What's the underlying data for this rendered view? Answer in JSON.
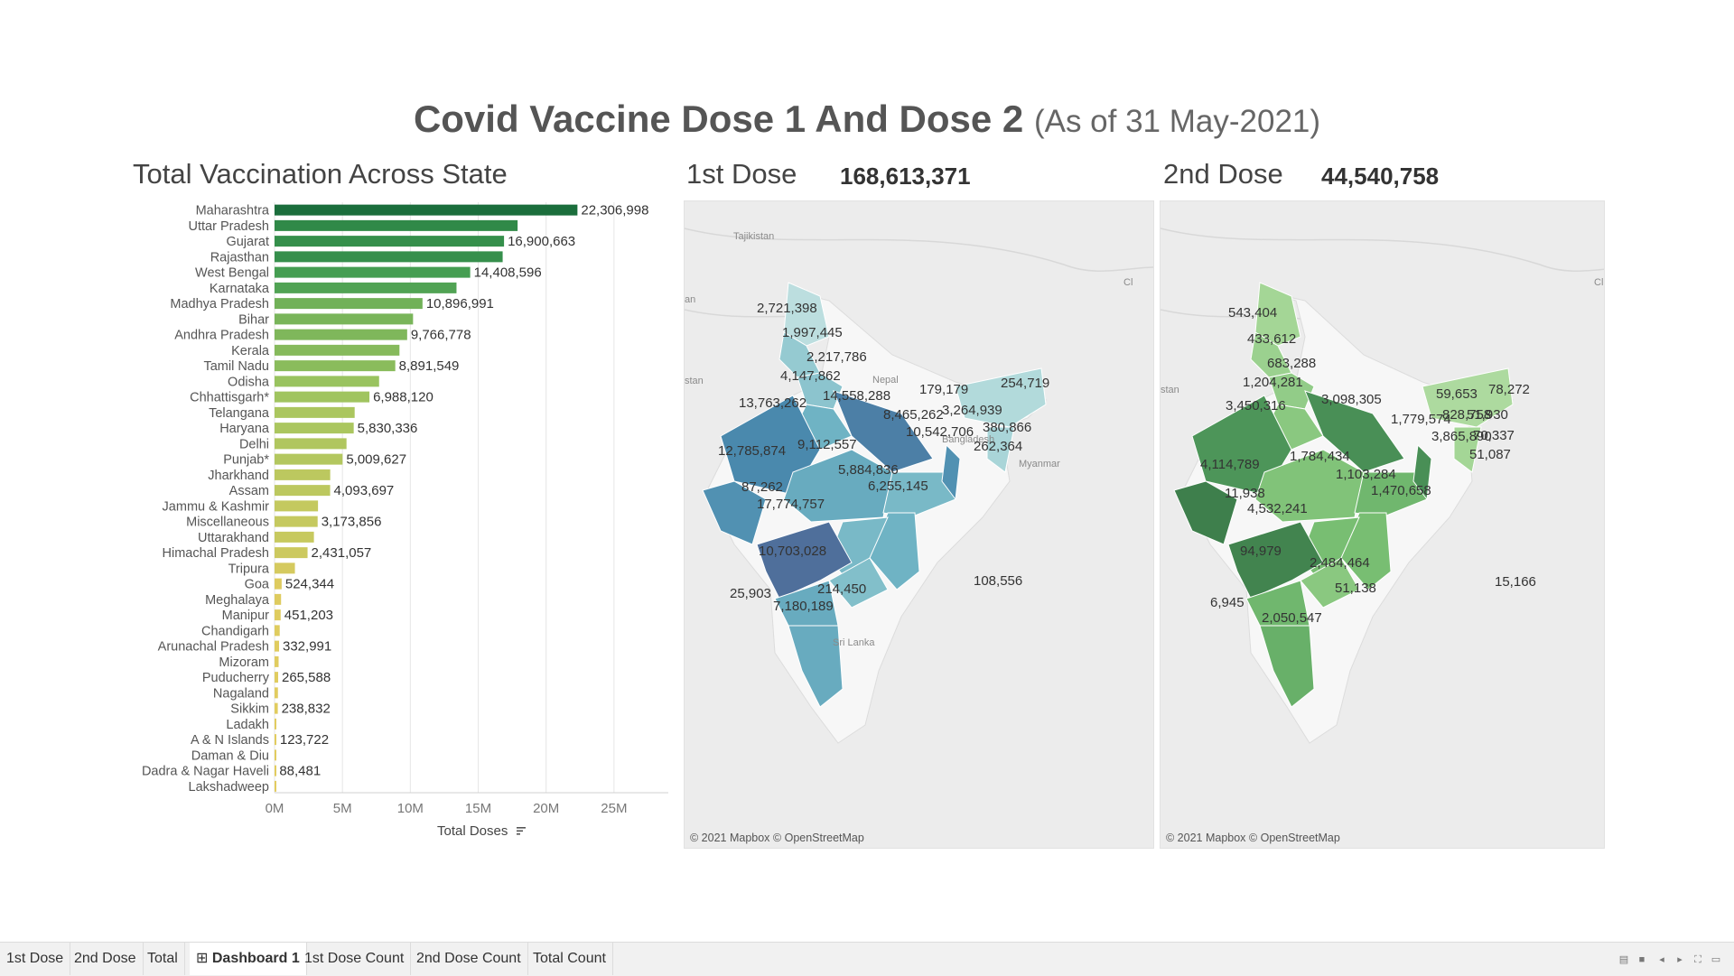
{
  "dashboard": {
    "title_main": "Covid Vaccine Dose 1 And Dose 2",
    "title_sub": "(As of 31 May-2021)"
  },
  "bar_panel": {
    "title": "Total Vaccination Across State",
    "axis_title": "Total Doses",
    "sort_icon": "sort-descending-icon"
  },
  "dose1": {
    "label": "1st Dose",
    "total": "168,613,371",
    "credit": "© 2021 Mapbox © OpenStreetMap"
  },
  "dose2": {
    "label": "2nd Dose",
    "total": "44,540,758",
    "credit": "© 2021 Mapbox © OpenStreetMap"
  },
  "chart_data": {
    "type": "bar",
    "orientation": "horizontal",
    "title": "Total Vaccination Across State",
    "xlabel": "Total Doses",
    "xlim": [
      0,
      29000000
    ],
    "xticks": [
      0,
      5000000,
      10000000,
      15000000,
      20000000,
      25000000
    ],
    "xtick_labels": [
      "0M",
      "5M",
      "10M",
      "15M",
      "20M",
      "25M"
    ],
    "grid": true,
    "color_scale": [
      "#1b6e3c",
      "#3f9b51",
      "#9cc45f",
      "#e3cc5f"
    ],
    "categories": [
      "Maharashtra",
      "Uttar Pradesh",
      "Gujarat",
      "Rajasthan",
      "West Bengal",
      "Karnataka",
      "Madhya Pradesh",
      "Bihar",
      "Andhra Pradesh",
      "Kerala",
      "Tamil Nadu",
      "Odisha",
      "Chhattisgarh*",
      "Telangana",
      "Haryana",
      "Delhi",
      "Punjab*",
      "Jharkhand",
      "Assam",
      "Jammu & Kashmir",
      "Miscellaneous",
      "Uttarakhand",
      "Himachal Pradesh",
      "Tripura",
      "Goa",
      "Meghalaya",
      "Manipur",
      "Chandigarh",
      "Arunachal Pradesh",
      "Mizoram",
      "Puducherry",
      "Nagaland",
      "Sikkim",
      "Ladakh",
      "A & N Islands",
      "Daman & Diu",
      "Dadra & Nagar Haveli",
      "Lakshadweep"
    ],
    "values": [
      22306998,
      17900000,
      16900663,
      16800000,
      14408596,
      13400000,
      10896991,
      10200000,
      9766778,
      9200000,
      8891549,
      7700000,
      6988120,
      5900000,
      5830336,
      5300000,
      5009627,
      4100000,
      4093697,
      3200000,
      3173856,
      2900000,
      2431057,
      1500000,
      524344,
      480000,
      451203,
      380000,
      332991,
      300000,
      265588,
      250000,
      238832,
      130000,
      123722,
      100000,
      88481,
      30000
    ],
    "data_labels": [
      "22,306,998",
      "",
      "16,900,663",
      "",
      "14,408,596",
      "",
      "10,896,991",
      "",
      "9,766,778",
      "",
      "8,891,549",
      "",
      "6,988,120",
      "",
      "5,830,336",
      "",
      "5,009,627",
      "",
      "4,093,697",
      "",
      "3,173,856",
      "",
      "2,431,057",
      "",
      "524,344",
      "",
      "451,203",
      "",
      "332,991",
      "",
      "265,588",
      "",
      "238,832",
      "",
      "123,722",
      "",
      "88,481",
      ""
    ]
  },
  "map1": {
    "color_scale": [
      "#cfe8e6",
      "#9fd0d4",
      "#6fb3c4",
      "#4a89ad",
      "#4f6f9b"
    ],
    "labels": [
      {
        "text": "2,721,398"
      },
      {
        "text": "1,997,445"
      },
      {
        "text": "2,217,786"
      },
      {
        "text": "4,147,862"
      },
      {
        "text": "14,558,288"
      },
      {
        "text": "13,763,262"
      },
      {
        "text": "179,179"
      },
      {
        "text": "254,719"
      },
      {
        "text": "8,465,262"
      },
      {
        "text": "3,264,939"
      },
      {
        "text": "10,542,706"
      },
      {
        "text": "380,866"
      },
      {
        "text": "262,364"
      },
      {
        "text": "12,785,874"
      },
      {
        "text": "9,112,557"
      },
      {
        "text": "5,884,836"
      },
      {
        "text": "6,255,145"
      },
      {
        "text": "87,262"
      },
      {
        "text": "17,774,757"
      },
      {
        "text": "10,703,028"
      },
      {
        "text": "214,450"
      },
      {
        "text": "25,903"
      },
      {
        "text": "7,180,189"
      },
      {
        "text": "108,556"
      }
    ],
    "place_names": [
      "Tajikistan",
      "an",
      "stan",
      "Nepal",
      "Bangladesh",
      "Myanmar",
      "Sri Lanka",
      "Cl"
    ]
  },
  "map2": {
    "color_scale": [
      "#cfe8c4",
      "#a4d696",
      "#78be72",
      "#519a5c",
      "#3e7f4c"
    ],
    "labels": [
      {
        "text": "543,404"
      },
      {
        "text": "433,612"
      },
      {
        "text": "683,288"
      },
      {
        "text": "1,204,281"
      },
      {
        "text": "3,098,305"
      },
      {
        "text": "3,450,316"
      },
      {
        "text": "59,653"
      },
      {
        "text": "78,272"
      },
      {
        "text": "1,779,574"
      },
      {
        "text": "828,758"
      },
      {
        "text": "51,930"
      },
      {
        "text": "3,865,890"
      },
      {
        "text": "70,337"
      },
      {
        "text": "51,087"
      },
      {
        "text": "4,114,789"
      },
      {
        "text": "1,784,434"
      },
      {
        "text": "1,103,284"
      },
      {
        "text": "11,938"
      },
      {
        "text": "1,470,658"
      },
      {
        "text": "4,532,241"
      },
      {
        "text": "94,979"
      },
      {
        "text": "2,484,464"
      },
      {
        "text": "6,945"
      },
      {
        "text": "51,138"
      },
      {
        "text": "2,050,547"
      },
      {
        "text": "15,166"
      }
    ],
    "place_names": [
      "stan",
      "Cl"
    ]
  },
  "tabs": [
    {
      "label": "1st Dose",
      "active": false
    },
    {
      "label": "2nd Dose",
      "active": false
    },
    {
      "label": "Total",
      "active": false
    },
    {
      "label": "Dashboard 1",
      "active": true,
      "icon": "dashboard-grid-icon"
    },
    {
      "label": "1st Dose Count",
      "active": false
    },
    {
      "label": "2nd Dose Count",
      "active": false
    },
    {
      "label": "Total Count",
      "active": false
    }
  ],
  "controls": [
    "sheet-sorter-icon",
    "filmstrip-icon",
    "previous-sheet-icon",
    "next-sheet-icon",
    "fullscreen-icon",
    "present-mode-icon"
  ]
}
